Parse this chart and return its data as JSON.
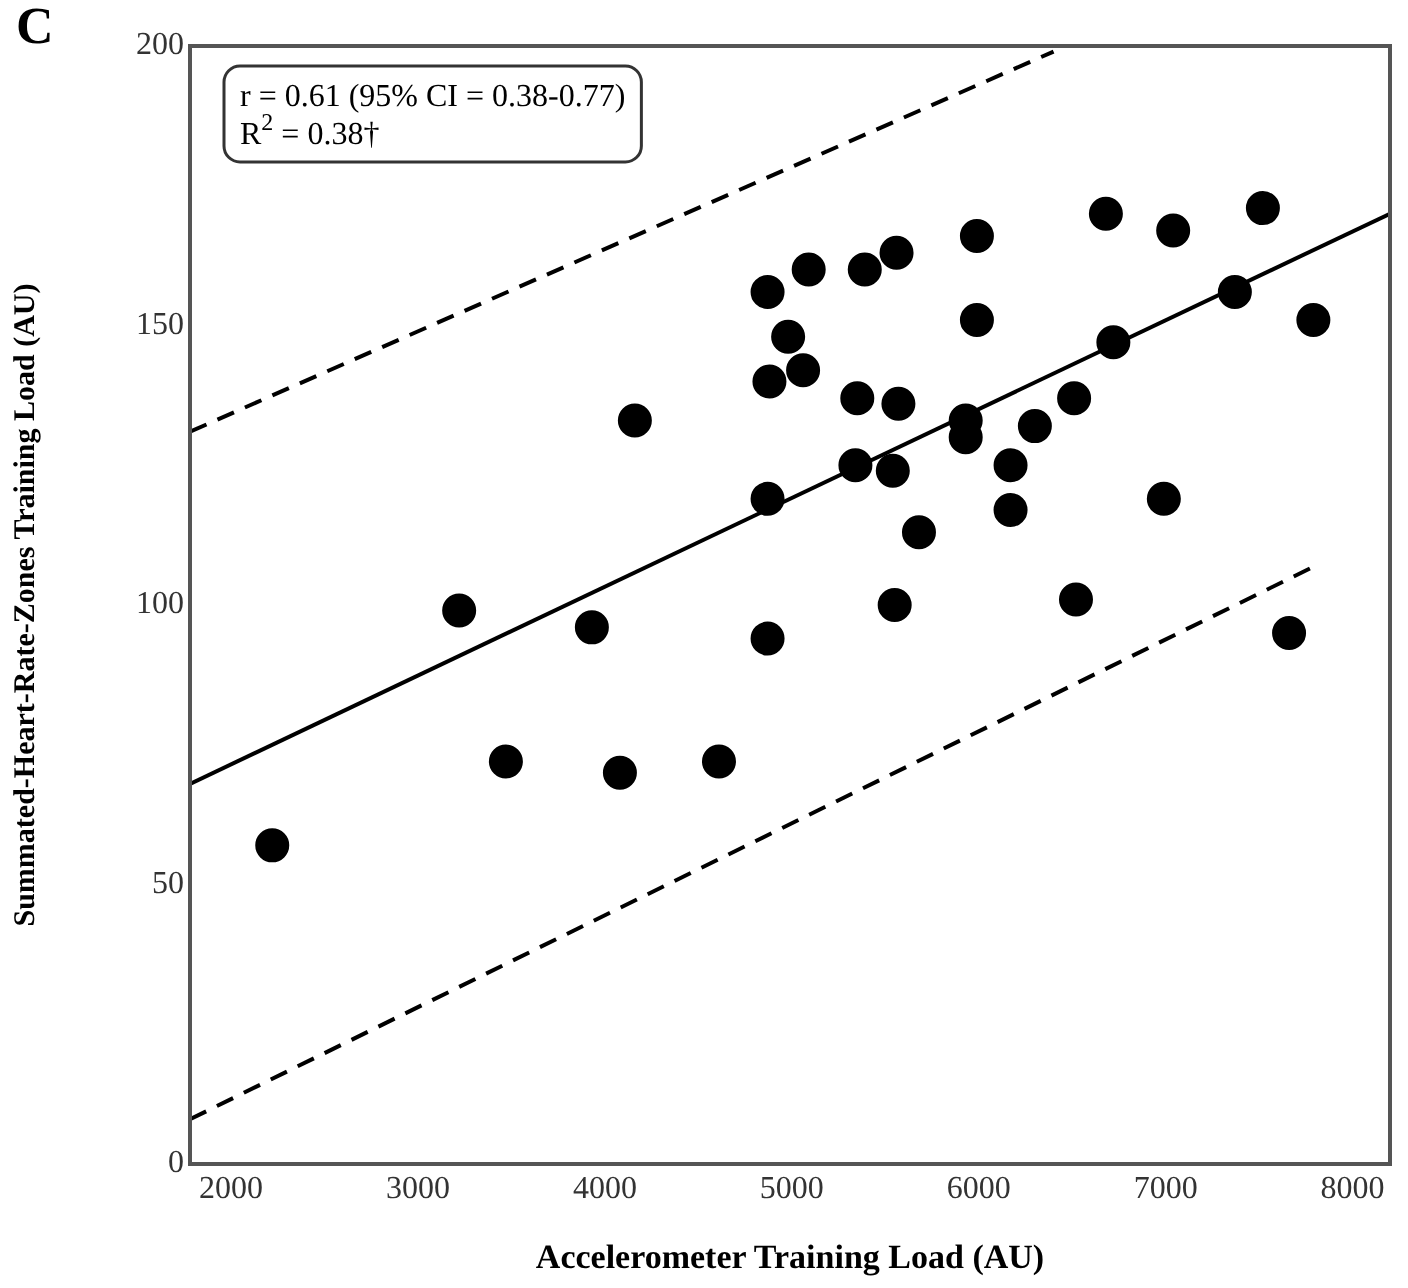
{
  "chart_data": {
    "type": "scatter",
    "title": "C",
    "xlabel": "Accelerometer Training Load (AU)",
    "ylabel": "Summated-Heart-Rate-Zones Training Load (AU)",
    "xlim": [
      1780,
      8200
    ],
    "xticks": [
      2000,
      3000,
      4000,
      5000,
      6000,
      7000,
      8000
    ],
    "ylim": [
      0,
      200
    ],
    "yticks": [
      0,
      50,
      100,
      150,
      200
    ],
    "grid": false,
    "legend": false,
    "annotations": [
      "r = 0.61 (95% CI = 0.38-0.77)",
      "R$^{2}$ = 0.38†"
    ],
    "series": [
      {
        "type": "scatter",
        "color": "#000000",
        "marker": "circle",
        "x": [
          2220,
          3220,
          3930,
          4870,
          3470,
          4080,
          4610,
          5550,
          6520,
          7660,
          4870,
          4980,
          4880,
          4160,
          4870,
          5090,
          5390,
          5560,
          5990,
          6680,
          7040,
          7520,
          5060,
          5990,
          6720,
          7370,
          7790,
          5350,
          5570,
          5930,
          5930,
          6300,
          6510,
          5340,
          5540,
          6170,
          6170,
          5680,
          6990
        ],
        "values": [
          57,
          99,
          96,
          94,
          72,
          70,
          72,
          100,
          101,
          95,
          156,
          148,
          140,
          133,
          119,
          160,
          160,
          163,
          166,
          170,
          167,
          171,
          142,
          151,
          147,
          156,
          151,
          137,
          136,
          133,
          130,
          132,
          137,
          125,
          124,
          125,
          117,
          113,
          119
        ]
      },
      {
        "type": "line",
        "color": "#000000",
        "line_style": "solid",
        "marker": "none",
        "x": [
          1780,
          8200
        ],
        "values": [
          68,
          170
        ]
      },
      {
        "type": "line",
        "color": "#000000",
        "line_style": "dashed",
        "marker": "none",
        "x": [
          1780,
          6400
        ],
        "values": [
          131,
          199
        ]
      },
      {
        "type": "line",
        "color": "#000000",
        "line_style": "dashed",
        "marker": "none",
        "x": [
          1780,
          7800
        ],
        "values": [
          8,
          107
        ]
      }
    ]
  }
}
